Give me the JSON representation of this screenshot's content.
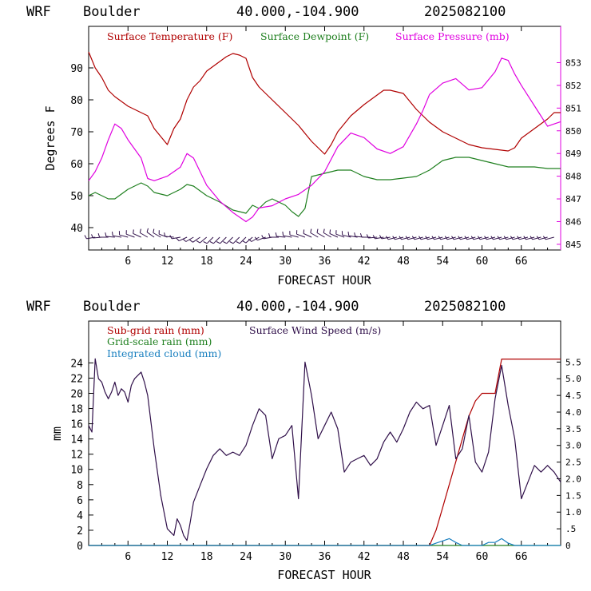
{
  "chart_data": [
    {
      "type": "line",
      "header": {
        "model": "WRF",
        "location": "Boulder",
        "coords": "40.000,-104.900",
        "run": "2025082100"
      },
      "xlabel": "FORECAST HOUR",
      "ylabel": "Degrees F",
      "xlim": [
        0,
        72
      ],
      "ylim": [
        33,
        103
      ],
      "x_ticks": [
        6,
        12,
        18,
        24,
        30,
        36,
        42,
        48,
        54,
        60,
        66
      ],
      "y_ticks": [
        40,
        50,
        60,
        70,
        80,
        90
      ],
      "y2lim": [
        844.75,
        854.6
      ],
      "y2_ticks": [
        845,
        846,
        847,
        848,
        849,
        850,
        851,
        852,
        853
      ],
      "series": [
        {
          "name": "Surface Temperature (F)",
          "color": "#b00000",
          "axis": "left",
          "x": [
            0,
            1,
            2,
            3,
            4,
            6,
            8,
            9,
            10,
            12,
            13,
            14,
            15,
            16,
            17,
            18,
            20,
            21,
            22,
            23,
            24,
            25,
            26,
            28,
            30,
            32,
            34,
            36,
            37,
            38,
            40,
            42,
            44,
            45,
            46,
            48,
            50,
            52,
            54,
            56,
            58,
            60,
            62,
            64,
            65,
            66,
            68,
            70,
            71,
            72
          ],
          "y": [
            95,
            90,
            87,
            83,
            81,
            78,
            76,
            75,
            71,
            66,
            71,
            74,
            80,
            84,
            86,
            89,
            92,
            93.5,
            94.5,
            94,
            93,
            87,
            84,
            80,
            76,
            72,
            67,
            63,
            66,
            70,
            75,
            78.5,
            81.5,
            83,
            83,
            82,
            77,
            73,
            70,
            68,
            66,
            65,
            64.5,
            64,
            65,
            68,
            71,
            74,
            76,
            76
          ]
        },
        {
          "name": "Surface Dewpoint (F)",
          "color": "#208020",
          "axis": "left",
          "x": [
            0,
            1,
            2,
            3,
            4,
            6,
            8,
            9,
            10,
            12,
            14,
            15,
            16,
            18,
            20,
            22,
            24,
            25,
            26,
            27,
            28,
            30,
            31,
            32,
            33,
            34,
            36,
            38,
            40,
            42,
            44,
            46,
            48,
            50,
            52,
            54,
            56,
            58,
            60,
            62,
            64,
            66,
            68,
            70,
            72
          ],
          "y": [
            50,
            51,
            50,
            49,
            49,
            52,
            54,
            53,
            51,
            50,
            52,
            53.5,
            53,
            50,
            48,
            45.5,
            44.5,
            47,
            46,
            48,
            49,
            47,
            45,
            43.5,
            46,
            56,
            57,
            58,
            58,
            56,
            55,
            55,
            55.5,
            56,
            58,
            61,
            62,
            62,
            61,
            60,
            59,
            59,
            59,
            58.5,
            58.5
          ]
        },
        {
          "name": "Surface Pressure (mb)",
          "color": "#e000e0",
          "axis": "right",
          "x": [
            0,
            1,
            2,
            3,
            4,
            5,
            6,
            7,
            8,
            9,
            10,
            12,
            14,
            15,
            16,
            18,
            20,
            22,
            24,
            25,
            26,
            28,
            30,
            32,
            34,
            36,
            38,
            40,
            42,
            44,
            46,
            48,
            49,
            50,
            51,
            52,
            54,
            56,
            58,
            60,
            62,
            63,
            64,
            65,
            66,
            68,
            70,
            71,
            72
          ],
          "y": [
            847.8,
            848.2,
            848.8,
            849.6,
            850.3,
            850.1,
            849.6,
            849.2,
            848.8,
            847.9,
            847.8,
            848.0,
            848.4,
            849.0,
            848.8,
            847.6,
            846.9,
            846.4,
            846.0,
            846.2,
            846.6,
            846.7,
            847.0,
            847.2,
            847.6,
            848.2,
            849.3,
            849.9,
            849.7,
            849.2,
            849.0,
            849.3,
            849.8,
            850.3,
            850.9,
            851.6,
            852.1,
            852.3,
            851.8,
            851.9,
            852.6,
            853.2,
            853.1,
            852.5,
            852.0,
            851.1,
            850.2,
            850.3,
            850.4
          ]
        }
      ],
      "legend": [
        "Surface Temperature (F)",
        "Surface Dewpoint (F)",
        "Surface Pressure (mb)"
      ],
      "legend_location": "top-left",
      "wind_barbs": {
        "color": "#30104a",
        "x": [
          1,
          2,
          3,
          4,
          5,
          6,
          7,
          8,
          9,
          10,
          11,
          12,
          13,
          14,
          15,
          16,
          17,
          18,
          19,
          20,
          21,
          22,
          23,
          24,
          25,
          26,
          27,
          28,
          29,
          30,
          31,
          32,
          33,
          34,
          35,
          36,
          37,
          38,
          39,
          40,
          41,
          42,
          43,
          44,
          45,
          46,
          47,
          48,
          49,
          50,
          51,
          52,
          53,
          54,
          55,
          56,
          57,
          58,
          59,
          60,
          61,
          62,
          63,
          64,
          65,
          66,
          67,
          68,
          69,
          70,
          71
        ],
        "dir_deg": [
          260,
          265,
          270,
          275,
          280,
          285,
          290,
          295,
          300,
          305,
          300,
          290,
          275,
          260,
          245,
          240,
          235,
          230,
          225,
          225,
          225,
          225,
          225,
          225,
          230,
          240,
          250,
          260,
          270,
          275,
          280,
          285,
          290,
          295,
          300,
          300,
          300,
          295,
          290,
          285,
          280,
          275,
          270,
          265,
          260,
          260,
          255,
          255,
          255,
          255,
          255,
          255,
          255,
          255,
          255,
          255,
          255,
          255,
          255,
          255,
          255,
          255,
          255,
          255,
          255,
          255,
          255,
          255,
          255,
          255,
          255
        ]
      }
    },
    {
      "type": "line",
      "header": {
        "model": "WRF",
        "location": "Boulder",
        "coords": "40.000,-104.900",
        "run": "2025082100"
      },
      "xlabel": "FORECAST HOUR",
      "ylabel": "mm",
      "xlim": [
        0,
        72
      ],
      "ylim": [
        0,
        29.5
      ],
      "x_ticks": [
        6,
        12,
        18,
        24,
        30,
        36,
        42,
        48,
        54,
        60,
        66
      ],
      "y_ticks": [
        0,
        2,
        4,
        6,
        8,
        10,
        12,
        14,
        16,
        18,
        20,
        22,
        24
      ],
      "y2lim": [
        0,
        6.73
      ],
      "y2_ticks": [
        0,
        0.5,
        1.0,
        1.5,
        2.0,
        2.5,
        3.0,
        3.5,
        4.0,
        4.5,
        5.0,
        5.5
      ],
      "y2_tick_labels": [
        "0",
        ".5",
        "1.0",
        "1.5",
        "2.0",
        "2.5",
        "3.0",
        "3.5",
        "4.0",
        "4.5",
        "5.0",
        "5.5"
      ],
      "series": [
        {
          "name": "Sub-grid rain (mm)",
          "color": "#b00000",
          "axis": "left",
          "x": [
            0,
            52,
            53,
            54,
            55,
            56,
            57,
            58,
            59,
            60,
            61,
            62,
            63,
            64,
            72
          ],
          "y": [
            0,
            0,
            2,
            5,
            8,
            11,
            14,
            17,
            19,
            20,
            20,
            20,
            24.5,
            24.5,
            24.5
          ]
        },
        {
          "name": "Grid-scale rain (mm)",
          "color": "#208020",
          "axis": "left",
          "x": [
            0,
            72
          ],
          "y": [
            0,
            0
          ]
        },
        {
          "name": "Integrated cloud (mm)",
          "color": "#1a80c0",
          "axis": "left",
          "x": [
            0,
            52,
            53,
            54,
            55,
            56,
            57,
            60,
            61,
            62,
            63,
            64,
            65,
            72
          ],
          "y": [
            0,
            0,
            0.3,
            0.6,
            0.9,
            0.4,
            0,
            0,
            0.4,
            0.4,
            0.9,
            0.3,
            0,
            0
          ]
        },
        {
          "name": "Surface Wind Speed (m/s)",
          "color": "#30104a",
          "axis": "right",
          "x": [
            0,
            0.5,
            1,
            1.5,
            2,
            2.5,
            3,
            3.5,
            4,
            4.5,
            5,
            5.5,
            6,
            6.5,
            7,
            8,
            8.5,
            9,
            10,
            11,
            12,
            13,
            13.5,
            14,
            14.5,
            15,
            15.5,
            16,
            17,
            18,
            19,
            20,
            21,
            22,
            23,
            24,
            25,
            26,
            27,
            28,
            29,
            30,
            31,
            32,
            33,
            34,
            35,
            36,
            37,
            38,
            39,
            40,
            41,
            42,
            43,
            44,
            45,
            46,
            47,
            48,
            49,
            50,
            51,
            52,
            53,
            54,
            55,
            56,
            57,
            58,
            59,
            60,
            61,
            62,
            63,
            64,
            65,
            66,
            67,
            68,
            69,
            70,
            71,
            72
          ],
          "y": [
            3.6,
            3.4,
            5.6,
            5.0,
            4.9,
            4.6,
            4.4,
            4.6,
            4.9,
            4.5,
            4.7,
            4.6,
            4.3,
            4.8,
            5.0,
            5.2,
            4.9,
            4.5,
            2.9,
            1.5,
            0.5,
            0.3,
            0.8,
            0.6,
            0.3,
            0.15,
            0.7,
            1.3,
            1.8,
            2.3,
            2.7,
            2.9,
            2.7,
            2.8,
            2.7,
            3.0,
            3.6,
            4.1,
            3.9,
            2.6,
            3.2,
            3.3,
            3.6,
            1.4,
            5.5,
            4.5,
            3.2,
            3.6,
            4.0,
            3.5,
            2.2,
            2.5,
            2.6,
            2.7,
            2.4,
            2.6,
            3.1,
            3.4,
            3.1,
            3.5,
            4.0,
            4.3,
            4.1,
            4.2,
            3.0,
            3.6,
            4.2,
            2.6,
            2.9,
            3.9,
            2.5,
            2.2,
            2.8,
            4.4,
            5.4,
            4.2,
            3.2,
            1.4,
            1.9,
            2.4,
            2.2,
            2.4,
            2.2,
            1.9
          ]
        }
      ],
      "legend": [
        "Sub-grid rain (mm)",
        "Surface Wind Speed (m/s)",
        "Grid-scale rain (mm)",
        "Integrated cloud (mm)"
      ],
      "legend_location": "top-left"
    }
  ]
}
